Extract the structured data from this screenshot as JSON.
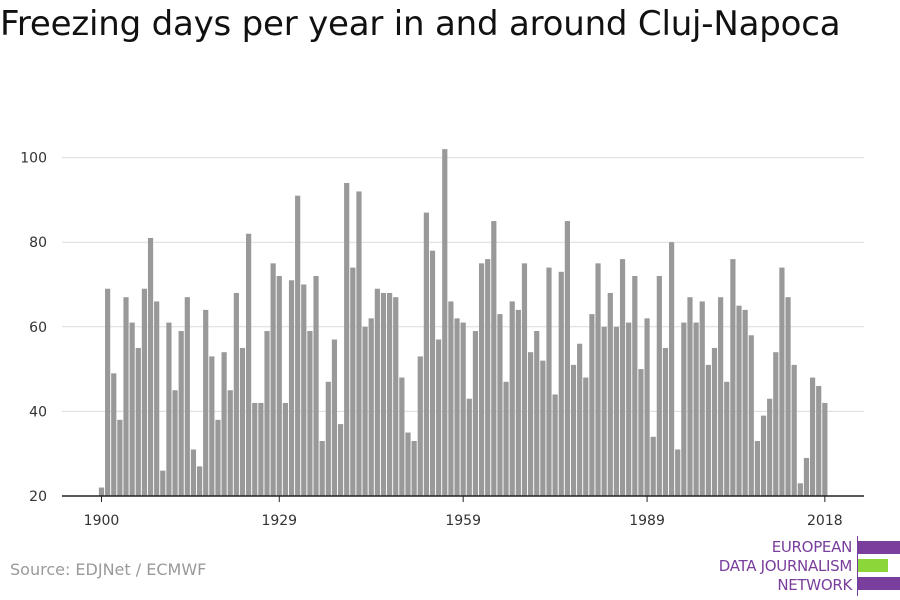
{
  "title": "Freezing days per year in and around Cluj-Napoca",
  "source": "Source: EDJNet / ECMWF",
  "logo": {
    "lines": [
      "EUROPEAN",
      "DATA JOURNALISM",
      "NETWORK"
    ],
    "colors": {
      "purple": "#7a3e9d",
      "green": "#8cd63a"
    }
  },
  "chart_data": {
    "type": "bar",
    "title": "Freezing days per year in and around Cluj-Napoca",
    "xlabel": "",
    "ylabel": "",
    "x_start": 1900,
    "x_ticks": [
      1900,
      1929,
      1959,
      1989,
      2018
    ],
    "y_ticks": [
      20,
      40,
      60,
      80,
      100
    ],
    "ylim": [
      20,
      103
    ],
    "bar_color": "#999999",
    "grid": true,
    "x": [
      1900,
      1901,
      1902,
      1903,
      1904,
      1905,
      1906,
      1907,
      1908,
      1909,
      1910,
      1911,
      1912,
      1913,
      1914,
      1915,
      1916,
      1917,
      1918,
      1919,
      1920,
      1921,
      1922,
      1923,
      1924,
      1925,
      1926,
      1927,
      1928,
      1929,
      1930,
      1931,
      1932,
      1933,
      1934,
      1935,
      1936,
      1937,
      1938,
      1939,
      1940,
      1941,
      1942,
      1943,
      1944,
      1945,
      1946,
      1947,
      1948,
      1949,
      1950,
      1951,
      1952,
      1953,
      1954,
      1955,
      1956,
      1957,
      1958,
      1959,
      1960,
      1961,
      1962,
      1963,
      1964,
      1965,
      1966,
      1967,
      1968,
      1969,
      1970,
      1971,
      1972,
      1973,
      1974,
      1975,
      1976,
      1977,
      1978,
      1979,
      1980,
      1981,
      1982,
      1983,
      1984,
      1985,
      1986,
      1987,
      1988,
      1989,
      1990,
      1991,
      1992,
      1993,
      1994,
      1995,
      1996,
      1997,
      1998,
      1999,
      2000,
      2001,
      2002,
      2003,
      2004,
      2005,
      2006,
      2007,
      2008,
      2009,
      2010,
      2011,
      2012,
      2013,
      2014,
      2015,
      2016,
      2017,
      2018
    ],
    "values": [
      22,
      69,
      49,
      38,
      67,
      61,
      55,
      69,
      81,
      66,
      26,
      61,
      45,
      59,
      67,
      31,
      27,
      64,
      53,
      38,
      54,
      45,
      68,
      55,
      82,
      42,
      42,
      59,
      75,
      72,
      42,
      71,
      91,
      70,
      59,
      72,
      33,
      47,
      57,
      37,
      94,
      74,
      92,
      60,
      62,
      69,
      68,
      68,
      67,
      48,
      35,
      33,
      53,
      87,
      78,
      57,
      102,
      66,
      62,
      61,
      43,
      59,
      75,
      76,
      85,
      63,
      47,
      66,
      64,
      75,
      54,
      59,
      52,
      74,
      44,
      73,
      85,
      51,
      56,
      48,
      63,
      75,
      60,
      68,
      60,
      76,
      61,
      72,
      50,
      62,
      34,
      72,
      55,
      80,
      31,
      61,
      67,
      61,
      66,
      51,
      55,
      67,
      47,
      76,
      65,
      64,
      58,
      33,
      39,
      43,
      54,
      74,
      67,
      51,
      23,
      29,
      48,
      46,
      42
    ]
  }
}
